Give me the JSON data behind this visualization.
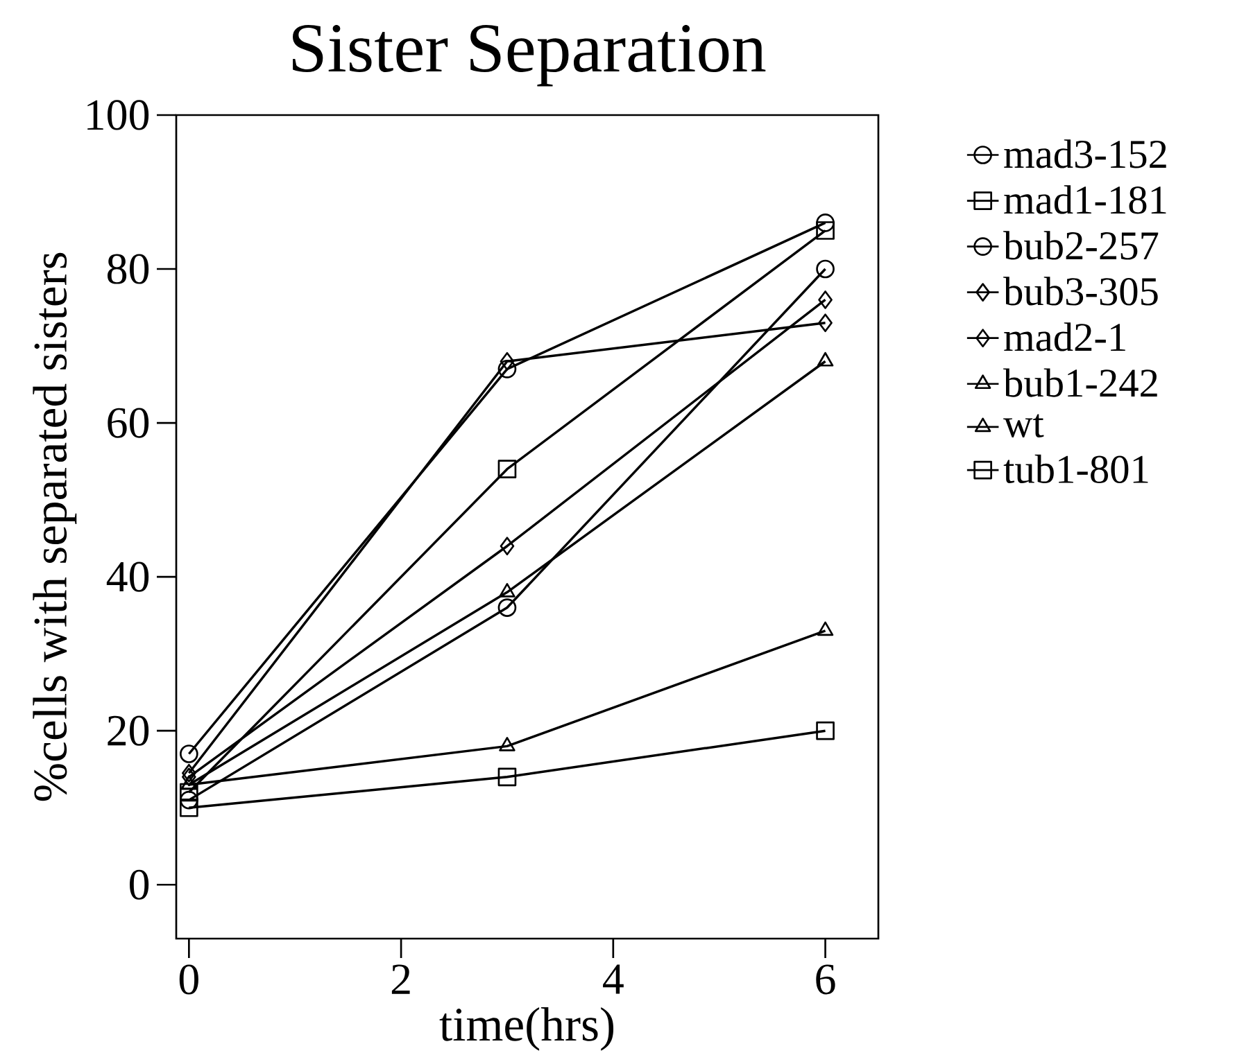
{
  "chart_data": {
    "type": "line",
    "title": "Sister Separation",
    "xlabel": "time(hrs)",
    "ylabel": "%cells with separated sisters",
    "x": [
      0,
      3,
      6
    ],
    "xlim": [
      -0.12,
      6.5
    ],
    "ylim": [
      -7,
      100
    ],
    "xticks": [
      0,
      2,
      4,
      6
    ],
    "yticks": [
      0,
      20,
      40,
      60,
      80,
      100
    ],
    "grid": false,
    "legend": "right",
    "series": [
      {
        "name": "mad3-152",
        "color": "#000000",
        "marker": "circle",
        "values": [
          17,
          67,
          86
        ]
      },
      {
        "name": "mad1-181",
        "color": "#000000",
        "marker": "square",
        "values": [
          12,
          54,
          85
        ]
      },
      {
        "name": "bub2-257",
        "color": "#000000",
        "marker": "circle",
        "values": [
          11,
          36,
          80
        ]
      },
      {
        "name": "bub3-305",
        "color": "#000000",
        "marker": "diamond",
        "values": [
          14,
          44,
          76
        ]
      },
      {
        "name": "mad2-1",
        "color": "#000000",
        "marker": "diamond",
        "values": [
          14.5,
          68,
          73
        ]
      },
      {
        "name": "bub1-242",
        "color": "#000000",
        "marker": "triangle",
        "values": [
          13,
          38,
          68
        ]
      },
      {
        "name": "wt",
        "color": "#000000",
        "marker": "triangle",
        "values": [
          13,
          18,
          33
        ]
      },
      {
        "name": "tub1-801",
        "color": "#000000",
        "marker": "square",
        "values": [
          10,
          14,
          20
        ]
      }
    ]
  }
}
